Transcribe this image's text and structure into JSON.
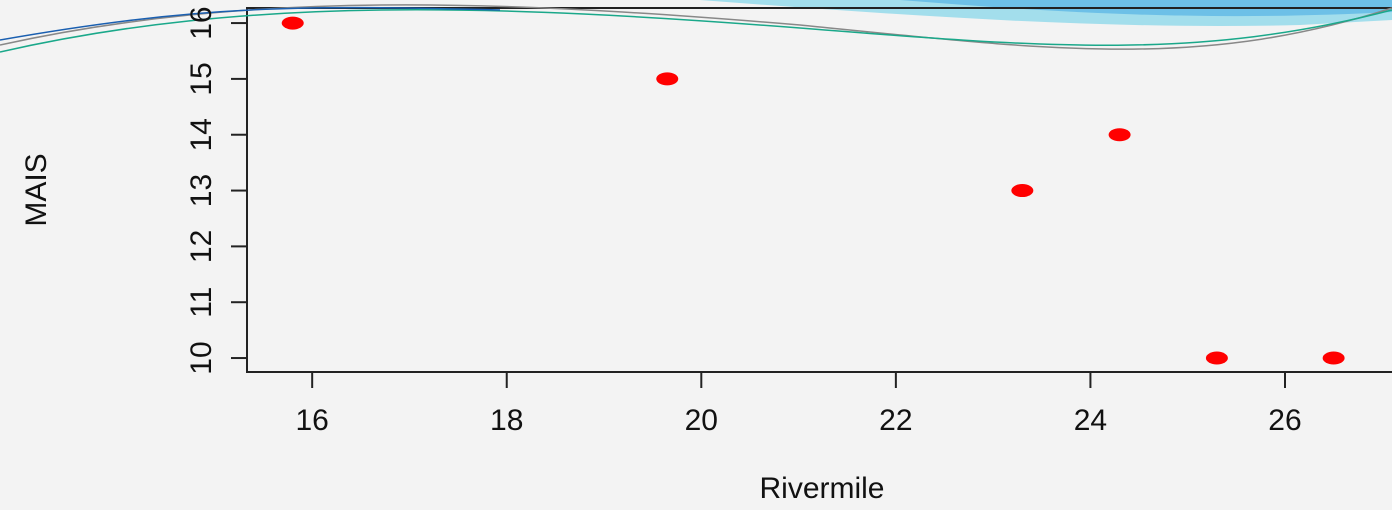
{
  "chart_data": {
    "type": "scatter",
    "x_label": "Rivermile",
    "y_label": "MAIS",
    "series": [
      {
        "color": "#ff0000",
        "x": [
          15.8,
          19.65,
          23.3,
          24.3,
          25.3,
          26.5
        ],
        "values": [
          16,
          15,
          13,
          14,
          10,
          10
        ]
      }
    ],
    "xlim": [
      15.33,
      27.1
    ],
    "ylim": [
      9.75,
      16.27
    ],
    "xticks": [
      16,
      18,
      20,
      22,
      24,
      26
    ],
    "yticks": [
      10,
      11,
      12,
      13,
      14,
      15,
      16
    ]
  }
}
